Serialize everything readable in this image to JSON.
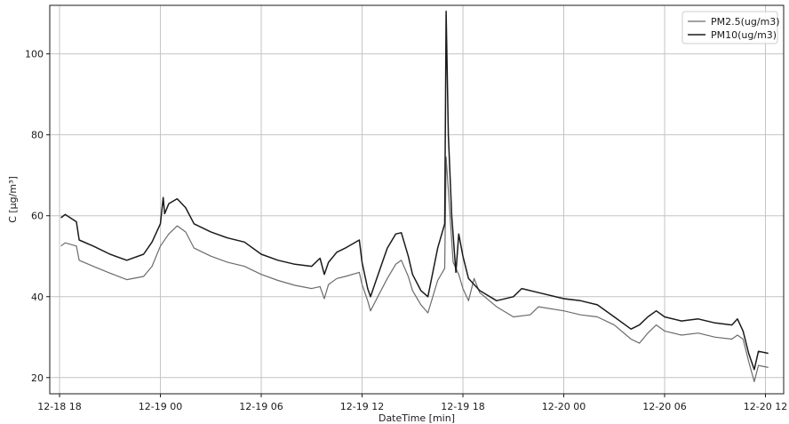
{
  "chart_data": {
    "type": "line",
    "xlabel": "DateTime [min]",
    "ylabel": "C [µg/m³]",
    "ylim": [
      16,
      112
    ],
    "xlim": [
      "2020-12-18T17:25",
      "2020-12-20T13:05"
    ],
    "grid": true,
    "legend_position": "top-right",
    "x_ticks": [
      {
        "value": "2020-12-18T18:00",
        "label": "12-18 18"
      },
      {
        "value": "2020-12-19T00:00",
        "label": "12-19 00"
      },
      {
        "value": "2020-12-19T06:00",
        "label": "12-19 06"
      },
      {
        "value": "2020-12-19T12:00",
        "label": "12-19 12"
      },
      {
        "value": "2020-12-19T18:00",
        "label": "12-19 18"
      },
      {
        "value": "2020-12-20T00:00",
        "label": "12-20 00"
      },
      {
        "value": "2020-12-20T06:00",
        "label": "12-20 06"
      },
      {
        "value": "2020-12-20T12:00",
        "label": "12-20 12"
      }
    ],
    "y_ticks": [
      20,
      40,
      60,
      80,
      100
    ],
    "series": [
      {
        "name": "PM2.5(ug/m3)",
        "color": "#6b6b6b",
        "points": [
          [
            "2020-12-18T18:05",
            52.5
          ],
          [
            "2020-12-18T18:20",
            53.3
          ],
          [
            "2020-12-18T19:00",
            52.5
          ],
          [
            "2020-12-18T19:10",
            49.0
          ],
          [
            "2020-12-18T20:00",
            47.5
          ],
          [
            "2020-12-18T21:00",
            45.8
          ],
          [
            "2020-12-18T22:00",
            44.2
          ],
          [
            "2020-12-18T23:00",
            45.0
          ],
          [
            "2020-12-18T23:30",
            47.5
          ],
          [
            "2020-12-19T00:00",
            52.5
          ],
          [
            "2020-12-19T00:30",
            55.5
          ],
          [
            "2020-12-19T01:00",
            57.5
          ],
          [
            "2020-12-19T01:30",
            56.0
          ],
          [
            "2020-12-19T02:00",
            52.0
          ],
          [
            "2020-12-19T03:00",
            50.0
          ],
          [
            "2020-12-19T04:00",
            48.5
          ],
          [
            "2020-12-19T05:00",
            47.5
          ],
          [
            "2020-12-19T06:00",
            45.5
          ],
          [
            "2020-12-19T07:00",
            44.0
          ],
          [
            "2020-12-19T08:00",
            42.8
          ],
          [
            "2020-12-19T09:00",
            42.0
          ],
          [
            "2020-12-19T09:30",
            42.5
          ],
          [
            "2020-12-19T09:45",
            39.5
          ],
          [
            "2020-12-19T10:00",
            43.0
          ],
          [
            "2020-12-19T10:30",
            44.5
          ],
          [
            "2020-12-19T11:00",
            45.0
          ],
          [
            "2020-12-19T11:50",
            46.0
          ],
          [
            "2020-12-19T12:00",
            43.0
          ],
          [
            "2020-12-19T12:20",
            39.0
          ],
          [
            "2020-12-19T12:30",
            36.5
          ],
          [
            "2020-12-19T13:00",
            40.5
          ],
          [
            "2020-12-19T13:30",
            44.5
          ],
          [
            "2020-12-19T14:00",
            48.0
          ],
          [
            "2020-12-19T14:20",
            49.0
          ],
          [
            "2020-12-19T14:45",
            45.0
          ],
          [
            "2020-12-19T15:00",
            41.5
          ],
          [
            "2020-12-19T15:30",
            38.0
          ],
          [
            "2020-12-19T15:55",
            36.0
          ],
          [
            "2020-12-19T16:30",
            44.0
          ],
          [
            "2020-12-19T16:55",
            47.0
          ],
          [
            "2020-12-19T17:00",
            74.5
          ],
          [
            "2020-12-19T17:10",
            64.0
          ],
          [
            "2020-12-19T17:25",
            48.5
          ],
          [
            "2020-12-19T17:45",
            45.5
          ],
          [
            "2020-12-19T18:00",
            42.0
          ],
          [
            "2020-12-19T18:20",
            39.0
          ],
          [
            "2020-12-19T18:40",
            44.5
          ],
          [
            "2020-12-19T19:00",
            41.0
          ],
          [
            "2020-12-19T20:00",
            37.5
          ],
          [
            "2020-12-19T21:00",
            35.0
          ],
          [
            "2020-12-19T22:00",
            35.5
          ],
          [
            "2020-12-19T22:30",
            37.5
          ],
          [
            "2020-12-20T00:00",
            36.5
          ],
          [
            "2020-12-20T01:00",
            35.5
          ],
          [
            "2020-12-20T02:00",
            35.0
          ],
          [
            "2020-12-20T03:00",
            33.0
          ],
          [
            "2020-12-20T04:00",
            29.5
          ],
          [
            "2020-12-20T04:30",
            28.5
          ],
          [
            "2020-12-20T05:00",
            31.0
          ],
          [
            "2020-12-20T05:30",
            33.0
          ],
          [
            "2020-12-20T06:00",
            31.5
          ],
          [
            "2020-12-20T07:00",
            30.5
          ],
          [
            "2020-12-20T08:00",
            31.0
          ],
          [
            "2020-12-20T09:00",
            30.0
          ],
          [
            "2020-12-20T10:00",
            29.5
          ],
          [
            "2020-12-20T10:20",
            30.5
          ],
          [
            "2020-12-20T10:40",
            29.5
          ],
          [
            "2020-12-20T11:00",
            24.0
          ],
          [
            "2020-12-20T11:20",
            19.0
          ],
          [
            "2020-12-20T11:35",
            23.0
          ],
          [
            "2020-12-20T12:10",
            22.5
          ]
        ]
      },
      {
        "name": "PM10(ug/m3)",
        "color": "#1a1a1a",
        "points": [
          [
            "2020-12-18T18:05",
            59.5
          ],
          [
            "2020-12-18T18:20",
            60.3
          ],
          [
            "2020-12-18T19:00",
            58.5
          ],
          [
            "2020-12-18T19:10",
            54.0
          ],
          [
            "2020-12-18T20:00",
            52.5
          ],
          [
            "2020-12-18T21:00",
            50.5
          ],
          [
            "2020-12-18T22:00",
            49.0
          ],
          [
            "2020-12-18T23:00",
            50.5
          ],
          [
            "2020-12-18T23:30",
            53.5
          ],
          [
            "2020-12-19T00:00",
            58.0
          ],
          [
            "2020-12-19T00:10",
            64.5
          ],
          [
            "2020-12-19T00:15",
            60.5
          ],
          [
            "2020-12-19T00:30",
            63.0
          ],
          [
            "2020-12-19T01:00",
            64.2
          ],
          [
            "2020-12-19T01:30",
            62.0
          ],
          [
            "2020-12-19T02:00",
            58.0
          ],
          [
            "2020-12-19T03:00",
            56.0
          ],
          [
            "2020-12-19T04:00",
            54.5
          ],
          [
            "2020-12-19T05:00",
            53.5
          ],
          [
            "2020-12-19T06:00",
            50.5
          ],
          [
            "2020-12-19T07:00",
            49.0
          ],
          [
            "2020-12-19T08:00",
            48.0
          ],
          [
            "2020-12-19T09:00",
            47.5
          ],
          [
            "2020-12-19T09:30",
            49.5
          ],
          [
            "2020-12-19T09:45",
            45.5
          ],
          [
            "2020-12-19T10:00",
            48.5
          ],
          [
            "2020-12-19T10:30",
            51.0
          ],
          [
            "2020-12-19T11:00",
            52.0
          ],
          [
            "2020-12-19T11:50",
            54.0
          ],
          [
            "2020-12-19T12:00",
            48.5
          ],
          [
            "2020-12-19T12:20",
            42.0
          ],
          [
            "2020-12-19T12:30",
            40.0
          ],
          [
            "2020-12-19T13:00",
            46.0
          ],
          [
            "2020-12-19T13:30",
            52.0
          ],
          [
            "2020-12-19T14:00",
            55.5
          ],
          [
            "2020-12-19T14:20",
            55.8
          ],
          [
            "2020-12-19T14:45",
            50.0
          ],
          [
            "2020-12-19T15:00",
            45.5
          ],
          [
            "2020-12-19T15:30",
            41.5
          ],
          [
            "2020-12-19T15:55",
            40.0
          ],
          [
            "2020-12-19T16:30",
            52.0
          ],
          [
            "2020-12-19T16:55",
            58.0
          ],
          [
            "2020-12-19T17:00",
            110.5
          ],
          [
            "2020-12-19T17:08",
            80.0
          ],
          [
            "2020-12-19T17:20",
            60.0
          ],
          [
            "2020-12-19T17:35",
            46.0
          ],
          [
            "2020-12-19T17:45",
            55.5
          ],
          [
            "2020-12-19T18:00",
            50.0
          ],
          [
            "2020-12-19T18:20",
            44.5
          ],
          [
            "2020-12-19T18:40",
            43.0
          ],
          [
            "2020-12-19T19:00",
            41.5
          ],
          [
            "2020-12-19T20:00",
            39.0
          ],
          [
            "2020-12-19T21:00",
            40.0
          ],
          [
            "2020-12-19T21:30",
            42.0
          ],
          [
            "2020-12-19T22:30",
            41.0
          ],
          [
            "2020-12-20T00:00",
            39.5
          ],
          [
            "2020-12-20T01:00",
            39.0
          ],
          [
            "2020-12-20T02:00",
            38.0
          ],
          [
            "2020-12-20T03:00",
            35.0
          ],
          [
            "2020-12-20T04:00",
            32.0
          ],
          [
            "2020-12-20T04:30",
            33.0
          ],
          [
            "2020-12-20T05:00",
            35.0
          ],
          [
            "2020-12-20T05:30",
            36.5
          ],
          [
            "2020-12-20T06:00",
            35.0
          ],
          [
            "2020-12-20T07:00",
            34.0
          ],
          [
            "2020-12-20T08:00",
            34.5
          ],
          [
            "2020-12-20T09:00",
            33.5
          ],
          [
            "2020-12-20T10:00",
            33.0
          ],
          [
            "2020-12-20T10:20",
            34.5
          ],
          [
            "2020-12-20T10:40",
            31.5
          ],
          [
            "2020-12-20T11:00",
            26.0
          ],
          [
            "2020-12-20T11:20",
            22.0
          ],
          [
            "2020-12-20T11:35",
            26.5
          ],
          [
            "2020-12-20T12:10",
            26.0
          ]
        ]
      }
    ]
  }
}
